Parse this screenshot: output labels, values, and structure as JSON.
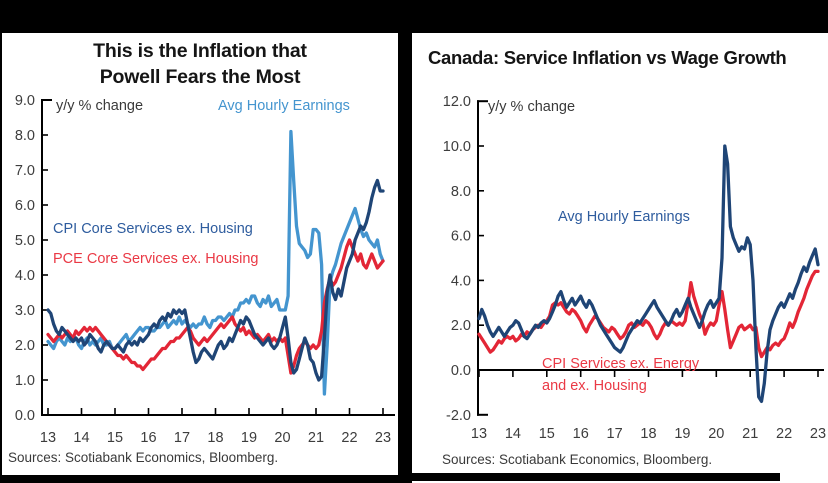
{
  "colors": {
    "background_frame": "#000000",
    "panel": "#ffffff",
    "light_blue": "#4495CF",
    "navy_line": "#1F4576",
    "navy_label": "#2E5C9E",
    "red_line": "#E32636",
    "red_label": "#EA3945",
    "axis": "#000000",
    "tick_text": "#3d3d3d"
  },
  "left_panel": {
    "title_line1": "This is the Inflation that",
    "title_line2": "Powell Fears the Most",
    "axis_note": "y/y % change",
    "label_ahe": "Avg Hourly Earnings",
    "label_cpi": "CPI Core Services ex. Housing",
    "label_pce": "PCE Core Services ex. Housing",
    "sources": "Sources: Scotiabank Economics, Bloomberg."
  },
  "right_panel": {
    "title": "Canada: Service Inflation vs Wage Growth",
    "axis_note": "y/y % change",
    "label_ahe": "Avg Hourly Earnings",
    "label_cpi_line1": "CPI Services ex. Energy",
    "label_cpi_line2": "and ex. Housing",
    "sources": "Sources: Scotiabank Economics, Bloomberg."
  },
  "chart_data": [
    {
      "type": "line",
      "title": "This is the Inflation that Powell Fears the Most",
      "ylabel": "y/y % change",
      "x_start_year": 2013,
      "x_step_months": 1,
      "xlim": [
        2013,
        2023
      ],
      "ylim": [
        0,
        9
      ],
      "yticks": [
        0,
        1,
        2,
        3,
        4,
        5,
        6,
        7,
        8,
        9
      ],
      "ytick_labels": [
        "0.0",
        "1.0",
        "2.0",
        "3.0",
        "4.0",
        "5.0",
        "6.0",
        "7.0",
        "8.0",
        "9.0"
      ],
      "xtick_labels": [
        "13",
        "14",
        "15",
        "16",
        "17",
        "18",
        "19",
        "20",
        "21",
        "22",
        "23"
      ],
      "grid": false,
      "legend_position": "inline-labels",
      "series": [
        {
          "name": "Avg Hourly Earnings",
          "color": "#4495CF",
          "values": [
            2.1,
            2.0,
            1.9,
            2.1,
            2.2,
            2.1,
            2.0,
            2.2,
            2.1,
            2.2,
            2.2,
            2.0,
            1.9,
            2.1,
            2.2,
            2.0,
            2.1,
            2.0,
            2.1,
            2.2,
            2.0,
            2.0,
            2.1,
            1.9,
            1.9,
            2.0,
            2.1,
            2.2,
            2.3,
            2.1,
            2.2,
            2.3,
            2.4,
            2.5,
            2.4,
            2.5,
            2.5,
            2.4,
            2.4,
            2.5,
            2.5,
            2.6,
            2.7,
            2.5,
            2.6,
            2.7,
            2.6,
            2.8,
            2.6,
            2.7,
            2.6,
            2.5,
            2.6,
            2.5,
            2.6,
            2.6,
            2.8,
            2.6,
            2.5,
            2.7,
            2.7,
            2.8,
            2.8,
            2.7,
            2.8,
            2.9,
            2.8,
            3.0,
            3.0,
            3.2,
            3.2,
            3.3,
            3.2,
            3.4,
            3.4,
            3.2,
            3.1,
            3.3,
            3.2,
            3.4,
            3.1,
            3.2,
            3.3,
            3.0,
            3.0,
            3.0,
            3.4,
            8.1,
            6.7,
            5.4,
            4.9,
            4.8,
            4.7,
            4.5,
            4.6,
            5.3,
            5.3,
            5.2,
            4.3,
            0.6,
            2.0,
            3.8,
            4.1,
            4.3,
            4.6,
            4.9,
            5.1,
            5.3,
            5.5,
            5.7,
            5.9,
            5.6,
            5.3,
            5.1,
            5.2,
            5.0,
            4.9,
            4.8,
            5.0,
            4.6,
            4.4
          ]
        },
        {
          "name": "PCE Core Services ex. Housing",
          "color": "#E32636",
          "values": [
            2.3,
            2.2,
            2.1,
            2.2,
            2.3,
            2.2,
            2.3,
            2.4,
            2.3,
            2.2,
            2.4,
            2.3,
            2.4,
            2.5,
            2.4,
            2.5,
            2.4,
            2.5,
            2.4,
            2.3,
            2.2,
            2.1,
            2.0,
            1.9,
            1.8,
            1.7,
            1.7,
            1.6,
            1.7,
            1.6,
            1.5,
            1.5,
            1.4,
            1.4,
            1.3,
            1.4,
            1.5,
            1.6,
            1.6,
            1.7,
            1.8,
            1.9,
            1.9,
            2.0,
            2.1,
            2.1,
            2.2,
            2.2,
            2.3,
            2.4,
            2.5,
            2.4,
            2.2,
            2.1,
            2.0,
            2.1,
            2.2,
            2.1,
            2.2,
            2.3,
            2.4,
            2.5,
            2.6,
            2.5,
            2.6,
            2.7,
            2.8,
            2.6,
            2.5,
            2.4,
            2.5,
            2.3,
            2.4,
            2.3,
            2.2,
            2.3,
            2.2,
            2.1,
            2.2,
            2.3,
            2.1,
            2.2,
            2.1,
            2.2,
            2.1,
            2.2,
            1.7,
            1.2,
            1.4,
            1.7,
            1.9,
            2.0,
            2.1,
            2.0,
            1.9,
            2.0,
            1.9,
            2.0,
            2.4,
            3.2,
            3.6,
            3.9,
            3.7,
            3.8,
            4.0,
            4.2,
            4.5,
            4.8,
            5.0,
            4.8,
            4.6,
            4.4,
            4.6,
            4.3,
            4.2,
            4.4,
            4.6,
            4.4,
            4.2,
            4.3,
            4.4
          ]
        },
        {
          "name": "CPI Core Services ex. Housing",
          "color": "#1F4576",
          "values": [
            3.0,
            2.9,
            2.6,
            2.4,
            2.3,
            2.5,
            2.4,
            2.3,
            2.2,
            2.1,
            2.2,
            2.1,
            2.2,
            2.0,
            2.1,
            2.3,
            2.2,
            2.1,
            1.9,
            1.8,
            2.0,
            2.1,
            2.0,
            1.9,
            1.9,
            2.0,
            1.9,
            1.8,
            2.0,
            2.1,
            2.0,
            2.1,
            2.0,
            2.2,
            2.1,
            2.2,
            2.3,
            2.5,
            2.6,
            2.5,
            2.7,
            2.8,
            2.7,
            2.9,
            2.8,
            3.0,
            2.9,
            3.0,
            2.9,
            3.0,
            2.6,
            2.2,
            1.8,
            1.5,
            1.6,
            1.8,
            1.9,
            1.8,
            1.7,
            1.6,
            1.8,
            2.0,
            2.1,
            1.9,
            2.0,
            2.2,
            2.1,
            2.3,
            2.5,
            2.7,
            2.6,
            2.8,
            2.7,
            2.5,
            2.3,
            2.2,
            2.1,
            2.0,
            2.1,
            2.2,
            2.0,
            1.9,
            2.0,
            2.2,
            2.5,
            2.8,
            2.2,
            1.5,
            1.2,
            1.3,
            1.6,
            1.9,
            2.2,
            2.0,
            1.6,
            1.5,
            1.2,
            1.0,
            1.1,
            2.2,
            3.5,
            4.0,
            3.5,
            3.3,
            3.6,
            3.4,
            3.8,
            4.2,
            4.4,
            4.6,
            5.0,
            5.2,
            5.4,
            5.3,
            5.5,
            5.8,
            6.2,
            6.5,
            6.7,
            6.4,
            6.4
          ]
        }
      ]
    },
    {
      "type": "line",
      "title": "Canada: Service Inflation vs Wage Growth",
      "ylabel": "y/y % change",
      "x_start_year": 2013,
      "x_step_months": 1,
      "xlim": [
        2013,
        2023
      ],
      "ylim": [
        -2,
        12
      ],
      "yticks": [
        -2,
        0,
        2,
        4,
        6,
        8,
        10,
        12
      ],
      "ytick_labels": [
        "-2.0",
        "0.0",
        "2.0",
        "4.0",
        "6.0",
        "8.0",
        "10.0",
        "12.0"
      ],
      "xtick_labels": [
        "13",
        "14",
        "15",
        "16",
        "17",
        "18",
        "19",
        "20",
        "21",
        "22",
        "23"
      ],
      "grid": false,
      "legend_position": "inline-labels",
      "series": [
        {
          "name": "CPI Services ex. Energy and ex. Housing",
          "color": "#E32636",
          "values": [
            1.6,
            1.4,
            1.2,
            1.0,
            0.8,
            0.9,
            1.1,
            1.3,
            1.2,
            1.4,
            1.5,
            1.4,
            1.5,
            1.3,
            1.4,
            1.6,
            1.5,
            1.7,
            1.6,
            1.8,
            1.9,
            2.0,
            1.9,
            2.1,
            2.2,
            2.4,
            2.9,
            3.0,
            2.9,
            3.0,
            2.8,
            2.6,
            2.5,
            2.7,
            2.6,
            2.4,
            2.2,
            1.9,
            1.7,
            2.0,
            2.2,
            2.4,
            2.3,
            2.1,
            1.9,
            1.8,
            1.7,
            1.9,
            1.8,
            1.6,
            1.4,
            1.5,
            1.7,
            2.0,
            2.1,
            1.9,
            2.0,
            2.1,
            2.0,
            2.2,
            2.1,
            1.9,
            1.6,
            1.4,
            1.6,
            1.9,
            2.1,
            2.0,
            2.2,
            2.1,
            2.0,
            2.1,
            2.0,
            2.2,
            3.0,
            3.9,
            3.3,
            2.9,
            2.5,
            2.2,
            1.6,
            1.9,
            2.1,
            2.0,
            2.2,
            2.9,
            3.5,
            2.7,
            1.8,
            1.0,
            1.3,
            1.6,
            1.9,
            2.0,
            1.8,
            1.9,
            2.0,
            1.8,
            1.9,
            1.0,
            0.6,
            0.8,
            1.0,
            0.9,
            1.1,
            1.2,
            1.1,
            1.3,
            1.4,
            1.7,
            2.1,
            1.9,
            2.2,
            2.6,
            2.9,
            3.2,
            3.6,
            3.9,
            4.2,
            4.4,
            4.4
          ]
        },
        {
          "name": "Avg Hourly Earnings",
          "color": "#1F4576",
          "values": [
            2.3,
            2.7,
            2.4,
            2.0,
            1.7,
            1.5,
            1.7,
            1.9,
            1.7,
            1.5,
            1.7,
            1.9,
            2.0,
            2.2,
            2.1,
            1.8,
            1.5,
            1.4,
            1.6,
            1.8,
            2.0,
            1.9,
            2.1,
            2.2,
            2.1,
            2.3,
            2.6,
            2.9,
            3.3,
            3.5,
            3.1,
            2.8,
            3.0,
            3.2,
            2.9,
            3.1,
            3.3,
            3.0,
            2.8,
            3.1,
            2.9,
            2.6,
            2.3,
            2.0,
            1.8,
            1.6,
            1.4,
            1.2,
            1.0,
            0.9,
            0.8,
            1.0,
            1.3,
            1.6,
            1.8,
            2.0,
            2.2,
            2.1,
            2.3,
            2.5,
            2.7,
            2.9,
            3.1,
            2.8,
            2.6,
            2.4,
            2.2,
            2.0,
            2.2,
            2.5,
            2.7,
            2.4,
            2.6,
            2.9,
            3.2,
            2.8,
            2.5,
            2.2,
            1.9,
            2.2,
            2.6,
            2.9,
            3.1,
            2.8,
            3.0,
            3.2,
            5.0,
            10.0,
            9.2,
            6.4,
            5.9,
            5.6,
            5.3,
            5.5,
            5.4,
            5.9,
            5.6,
            4.0,
            1.0,
            -1.2,
            -1.4,
            -0.6,
            0.8,
            1.8,
            2.2,
            2.5,
            2.8,
            3.0,
            2.8,
            3.1,
            3.4,
            3.2,
            3.6,
            3.9,
            4.3,
            4.6,
            4.4,
            4.8,
            5.1,
            5.4,
            4.7
          ]
        }
      ]
    }
  ]
}
